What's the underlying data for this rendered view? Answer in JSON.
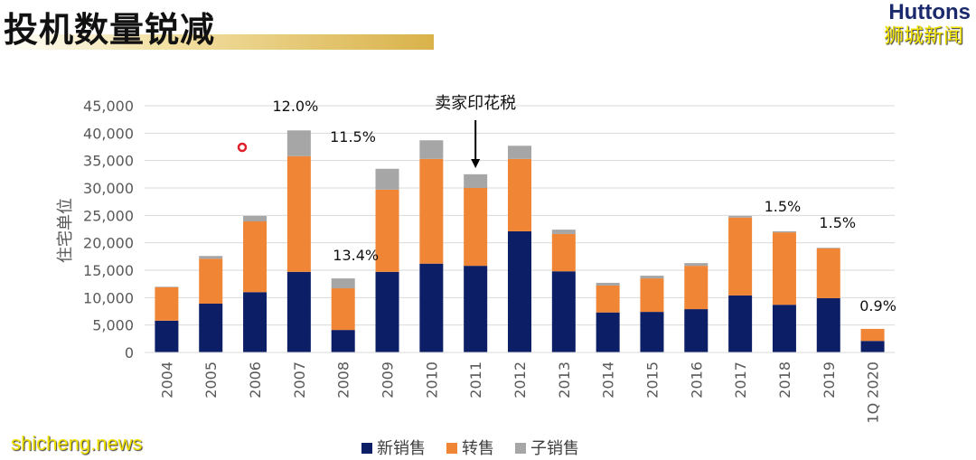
{
  "title": "投机数量锐减",
  "logo": "Huttons",
  "watermarks": [
    "狮城新闻",
    "shicheng.news"
  ],
  "colors": {
    "new_sale": "#0c1f66",
    "resale": "#ef8535",
    "sub_sale": "#a6a6a6"
  },
  "chart_data": {
    "type": "bar",
    "stacked": true,
    "ylabel": "住宅单位",
    "ylim": [
      0,
      45000
    ],
    "grid": true,
    "legend": "bottom",
    "yticks": [
      "0",
      "5,000",
      "10,000",
      "15,000",
      "20,000",
      "25,000",
      "30,000",
      "35,000",
      "40,000",
      "45,000"
    ],
    "categories": [
      "2004",
      "2005",
      "2006",
      "2007",
      "2008",
      "2009",
      "2010",
      "2011",
      "2012",
      "2013",
      "2014",
      "2015",
      "2016",
      "2017",
      "2018",
      "2019",
      "1Q 2020"
    ],
    "series": [
      {
        "name": "新销售",
        "values": [
          5800,
          8900,
          11000,
          14700,
          4100,
          14700,
          16200,
          15800,
          22100,
          14800,
          7300,
          7400,
          7900,
          10400,
          8700,
          9900,
          2100
        ]
      },
      {
        "name": "转售",
        "values": [
          6100,
          8200,
          12900,
          21100,
          7600,
          15000,
          19100,
          14200,
          13200,
          6800,
          4900,
          6100,
          7900,
          14200,
          13200,
          9100,
          2200
        ]
      },
      {
        "name": "子销售",
        "values": [
          100,
          500,
          1000,
          4700,
          1800,
          3800,
          3400,
          2500,
          2400,
          800,
          500,
          500,
          500,
          300,
          200,
          100,
          0
        ]
      }
    ],
    "annotations": [
      {
        "category": "2007",
        "text": "12.0%"
      },
      {
        "category": "2008",
        "text": "13.4%"
      },
      {
        "category": "2009",
        "text": "11.5%"
      },
      {
        "category": "2011",
        "text": "卖家印花税",
        "arrow": true
      },
      {
        "category": "2018",
        "text": "1.5%"
      },
      {
        "category": "2019",
        "text": "1.5%"
      },
      {
        "category": "1Q 2020",
        "text": "0.9%"
      }
    ]
  }
}
